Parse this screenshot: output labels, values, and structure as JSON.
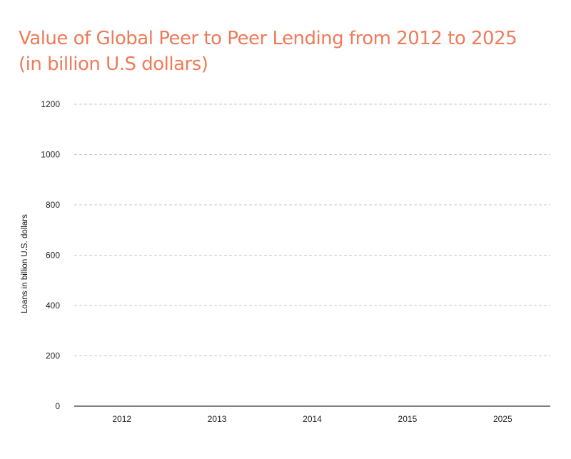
{
  "title": {
    "line1": "Value of Global Peer to Peer Lending from 2012 to 2025",
    "line2": "(in billion U.S dollars)"
  },
  "colors": {
    "title": "#ef7b59",
    "grid": "#c9c9c9",
    "axis": "#000000",
    "text": "#222222"
  },
  "chart_data": {
    "type": "bar",
    "title": "Value of Global Peer to Peer Lending from 2012 to 2025 (in billion U.S dollars)",
    "categories": [
      "2012",
      "2013",
      "2014",
      "2015",
      "2025"
    ],
    "values": [
      null,
      null,
      null,
      null,
      null
    ],
    "xlabel": "",
    "ylabel": "Loans in billion U.S. dollars",
    "ylim": [
      0,
      1200
    ],
    "yticks": [
      "0",
      "200",
      "400",
      "600",
      "800",
      "1000",
      "1200"
    ],
    "grid": true,
    "legend": "none"
  }
}
